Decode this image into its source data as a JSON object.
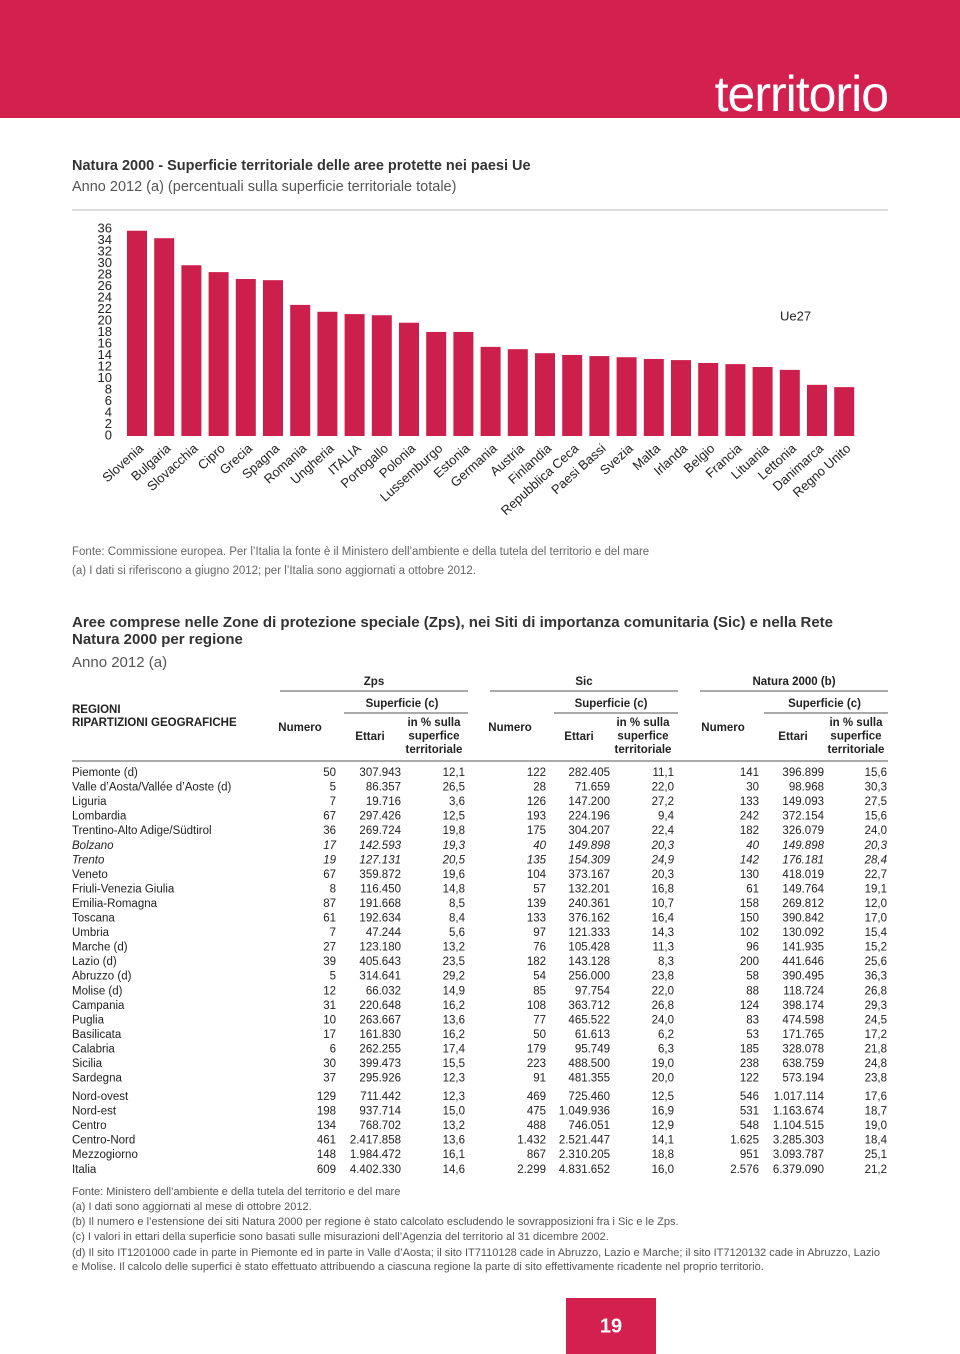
{
  "header": {
    "section": "territorio"
  },
  "chart_data": {
    "type": "bar",
    "title": "Natura 2000 - Superficie territoriale delle aree protette nei paesi Ue",
    "subtitle": "Anno 2012 (a) (percentuali sulla superficie territoriale totale)",
    "categories": [
      "Slovenia",
      "Bulgaria",
      "Slovacchia",
      "Cipro",
      "Grecia",
      "Spagna",
      "Romania",
      "Ungheria",
      "ITALIA",
      "Portogallo",
      "Polonia",
      "Lussemburgo",
      "Estonia",
      "Germania",
      "Austria",
      "Finlandia",
      "Repubblica Ceca",
      "Paesi Bassi",
      "Svezia",
      "Malta",
      "Irlanda",
      "Belgio",
      "Francia",
      "Lituania",
      "Lettonia",
      "Danimarca",
      "Regno Unito"
    ],
    "values": [
      35.7,
      34.4,
      29.7,
      28.5,
      27.3,
      27.1,
      22.8,
      21.6,
      21.2,
      21.0,
      19.7,
      18.1,
      18.1,
      15.5,
      15.1,
      14.4,
      14.1,
      13.9,
      13.7,
      13.4,
      13.2,
      12.7,
      12.5,
      12.0,
      11.5,
      8.9,
      8.5
    ],
    "color": "#cc1f4b",
    "ylim": [
      0,
      36
    ],
    "yticks": [
      0,
      2,
      4,
      6,
      8,
      10,
      12,
      14,
      16,
      18,
      20,
      22,
      24,
      26,
      28,
      30,
      32,
      34,
      36
    ],
    "annotation": "Ue27",
    "notes": [
      "Fonte: Commissione europea. Per l’Italia la fonte è il Ministero dell’ambiente e della tutela del territorio e del mare",
      "(a) I dati si riferiscono a giugno 2012; per l’Italia sono aggiornati a ottobre 2012."
    ]
  },
  "table": {
    "title": [
      "Aree comprese nelle Zone di protezione speciale (Zps), nei Siti di importanza comunitaria (Sic) e nella Rete",
      "Natura 2000 per regione"
    ],
    "subtitle": "Anno 2012 (a)",
    "row_header": [
      "REGIONI",
      "RIPARTIZIONI GEOGRAFICHE"
    ],
    "groups": [
      "Zps",
      "Sic",
      "Natura 2000 (b)"
    ],
    "surface": "Superficie (c)",
    "col_number": "Numero",
    "col_hectares": "Ettari",
    "col_percent": [
      "in % sulla",
      "superfice",
      "territoriale"
    ],
    "rows": [
      [
        "Piemonte (d)",
        "50",
        "307.943",
        "12,1",
        "122",
        "282.405",
        "11,1",
        "141",
        "396.899",
        "15,6"
      ],
      [
        "Valle d’Aosta/Vallée d’Aoste (d)",
        "5",
        "86.357",
        "26,5",
        "28",
        "71.659",
        "22,0",
        "30",
        "98.968",
        "30,3"
      ],
      [
        "Liguria",
        "7",
        "19.716",
        "3,6",
        "126",
        "147.200",
        "27,2",
        "133",
        "149.093",
        "27,5"
      ],
      [
        "Lombardia",
        "67",
        "297.426",
        "12,5",
        "193",
        "224.196",
        "9,4",
        "242",
        "372.154",
        "15,6"
      ],
      [
        "Trentino-Alto Adige/Südtirol",
        "36",
        "269.724",
        "19,8",
        "175",
        "304.207",
        "22,4",
        "182",
        "326.079",
        "24,0"
      ],
      [
        "Bolzano",
        "17",
        "142.593",
        "19,3",
        "40",
        "149.898",
        "20,3",
        "40",
        "149.898",
        "20,3"
      ],
      [
        "Trento",
        "19",
        "127.131",
        "20,5",
        "135",
        "154.309",
        "24,9",
        "142",
        "176.181",
        "28,4"
      ],
      [
        "Veneto",
        "67",
        "359.872",
        "19,6",
        "104",
        "373.167",
        "20,3",
        "130",
        "418.019",
        "22,7"
      ],
      [
        "Friuli-Venezia Giulia",
        "8",
        "116.450",
        "14,8",
        "57",
        "132.201",
        "16,8",
        "61",
        "149.764",
        "19,1"
      ],
      [
        "Emilia-Romagna",
        "87",
        "191.668",
        "8,5",
        "139",
        "240.361",
        "10,7",
        "158",
        "269.812",
        "12,0"
      ],
      [
        "Toscana",
        "61",
        "192.634",
        "8,4",
        "133",
        "376.162",
        "16,4",
        "150",
        "390.842",
        "17,0"
      ],
      [
        "Umbria",
        "7",
        "47.244",
        "5,6",
        "97",
        "121.333",
        "14,3",
        "102",
        "130.092",
        "15,4"
      ],
      [
        "Marche (d)",
        "27",
        "123.180",
        "13,2",
        "76",
        "105.428",
        "11,3",
        "96",
        "141.935",
        "15,2"
      ],
      [
        "Lazio (d)",
        "39",
        "405.643",
        "23,5",
        "182",
        "143.128",
        "8,3",
        "200",
        "441.646",
        "25,6"
      ],
      [
        "Abruzzo (d)",
        "5",
        "314.641",
        "29,2",
        "54",
        "256.000",
        "23,8",
        "58",
        "390.495",
        "36,3"
      ],
      [
        "Molise (d)",
        "12",
        "66.032",
        "14,9",
        "85",
        "97.754",
        "22,0",
        "88",
        "118.724",
        "26,8"
      ],
      [
        "Campania",
        "31",
        "220.648",
        "16,2",
        "108",
        "363.712",
        "26,8",
        "124",
        "398.174",
        "29,3"
      ],
      [
        "Puglia",
        "10",
        "263.667",
        "13,6",
        "77",
        "465.522",
        "24,0",
        "83",
        "474.598",
        "24,5"
      ],
      [
        "Basilicata",
        "17",
        "161.830",
        "16,2",
        "50",
        "61.613",
        "6,2",
        "53",
        "171.765",
        "17,2"
      ],
      [
        "Calabria",
        "6",
        "262.255",
        "17,4",
        "179",
        "95.749",
        "6,3",
        "185",
        "328.078",
        "21,8"
      ],
      [
        "Sicilia",
        "30",
        "399.473",
        "15,5",
        "223",
        "488.500",
        "19,0",
        "238",
        "638.759",
        "24,8"
      ],
      [
        "Sardegna",
        "37",
        "295.926",
        "12,3",
        "91",
        "481.355",
        "20,0",
        "122",
        "573.194",
        "23,8"
      ]
    ],
    "summary_rows": [
      [
        "Nord-ovest",
        "129",
        "711.442",
        "12,3",
        "469",
        "725.460",
        "12,5",
        "546",
        "1.017.114",
        "17,6"
      ],
      [
        "Nord-est",
        "198",
        "937.714",
        "15,0",
        "475",
        "1.049.936",
        "16,9",
        "531",
        "1.163.674",
        "18,7"
      ],
      [
        "Centro",
        "134",
        "768.702",
        "13,2",
        "488",
        "746.051",
        "12,9",
        "548",
        "1.104.515",
        "19,0"
      ],
      [
        "Centro-Nord",
        "461",
        "2.417.858",
        "13,6",
        "1.432",
        "2.521.447",
        "14,1",
        "1.625",
        "3.285.303",
        "18,4"
      ],
      [
        "Mezzogiorno",
        "148",
        "1.984.472",
        "16,1",
        "867",
        "2.310.205",
        "18,8",
        "951",
        "3.093.787",
        "25,1"
      ],
      [
        "Italia",
        "609",
        "4.402.330",
        "14,6",
        "2.299",
        "4.831.652",
        "16,0",
        "2.576",
        "6.379.090",
        "21,2"
      ]
    ],
    "notes": [
      "Fonte: Ministero dell’ambiente e della tutela del territorio e del mare",
      "(a) I dati sono aggiornati al mese di ottobre 2012.",
      "(b) Il numero e l’estensione dei siti Natura 2000 per regione è stato calcolato escludendo le sovrapposizioni fra i Sic e le Zps.",
      "(c) I valori in ettari della superficie sono basati sulle misurazioni dell’Agenzia del territorio al 31 dicembre 2002.",
      "(d) Il sito IT1201000 cade in parte in Piemonte ed in parte in Valle d’Aosta; il sito IT7110128 cade in Abruzzo, Lazio e Marche; il sito IT7120132 cade in Abruzzo, Lazio",
      "e Molise. Il calcolo delle superfici è stato effettuato attribuendo a ciascuna regione la parte di sito effettivamente ricadente nel proprio territorio."
    ]
  },
  "footer": {
    "page": "19"
  }
}
